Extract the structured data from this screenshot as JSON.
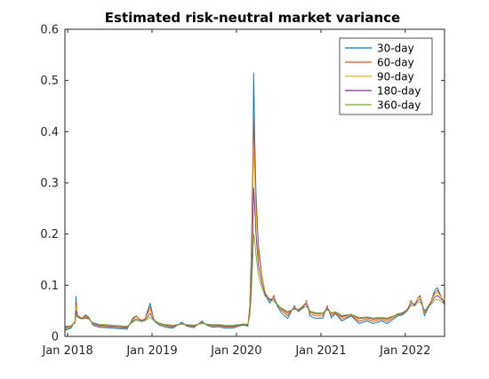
{
  "chart_data": {
    "type": "line",
    "title": "Estimated risk-neutral market variance",
    "xlabel": "",
    "ylabel": "",
    "xlim": [
      "2017-12-20",
      "2022-06-20"
    ],
    "ylim": [
      0,
      0.6
    ],
    "x_ticks": [
      "2018-01-01",
      "2019-01-01",
      "2020-01-01",
      "2021-01-01",
      "2022-01-01"
    ],
    "x_tick_labels": [
      "Jan 2018",
      "Jan 2019",
      "Jan 2020",
      "Jan 2021",
      "Jan 2022"
    ],
    "y_ticks": [
      0,
      0.1,
      0.2,
      0.3,
      0.4,
      0.5,
      0.6
    ],
    "y_tick_labels": [
      "0",
      "0.1",
      "0.2",
      "0.3",
      "0.4",
      "0.5",
      "0.6"
    ],
    "grid": false,
    "legend_position": "top-right",
    "x": [
      "2017-12-20",
      "2018-01-15",
      "2018-02-02",
      "2018-02-06",
      "2018-02-12",
      "2018-03-01",
      "2018-03-20",
      "2018-04-02",
      "2018-04-20",
      "2018-05-15",
      "2018-06-15",
      "2018-07-15",
      "2018-08-15",
      "2018-09-15",
      "2018-10-10",
      "2018-10-25",
      "2018-11-15",
      "2018-12-01",
      "2018-12-24",
      "2019-01-10",
      "2019-02-01",
      "2019-03-01",
      "2019-04-01",
      "2019-05-10",
      "2019-06-01",
      "2019-07-01",
      "2019-08-05",
      "2019-08-25",
      "2019-09-20",
      "2019-10-15",
      "2019-11-15",
      "2019-12-15",
      "2020-01-10",
      "2020-01-31",
      "2020-02-20",
      "2020-02-28",
      "2020-03-05",
      "2020-03-12",
      "2020-03-16",
      "2020-03-20",
      "2020-03-26",
      "2020-04-05",
      "2020-04-20",
      "2020-05-05",
      "2020-05-25",
      "2020-06-11",
      "2020-06-25",
      "2020-07-15",
      "2020-08-10",
      "2020-09-08",
      "2020-09-25",
      "2020-10-15",
      "2020-10-30",
      "2020-11-15",
      "2020-12-10",
      "2021-01-10",
      "2021-01-28",
      "2021-02-15",
      "2021-03-05",
      "2021-04-01",
      "2021-05-12",
      "2021-06-15",
      "2021-07-19",
      "2021-08-15",
      "2021-09-20",
      "2021-10-15",
      "2021-11-30",
      "2021-12-20",
      "2022-01-10",
      "2022-01-25",
      "2022-02-10",
      "2022-02-24",
      "2022-03-07",
      "2022-03-25",
      "2022-04-15",
      "2022-05-09",
      "2022-05-20",
      "2022-06-13",
      "2022-06-20"
    ],
    "series": [
      {
        "name": "30-day",
        "color": "#0072BD",
        "values": [
          0.012,
          0.016,
          0.03,
          0.078,
          0.04,
          0.035,
          0.042,
          0.038,
          0.022,
          0.018,
          0.017,
          0.016,
          0.015,
          0.014,
          0.036,
          0.04,
          0.03,
          0.034,
          0.065,
          0.03,
          0.022,
          0.018,
          0.016,
          0.028,
          0.02,
          0.017,
          0.03,
          0.022,
          0.018,
          0.019,
          0.016,
          0.016,
          0.02,
          0.022,
          0.02,
          0.06,
          0.15,
          0.33,
          0.515,
          0.4,
          0.28,
          0.18,
          0.12,
          0.08,
          0.065,
          0.08,
          0.06,
          0.045,
          0.035,
          0.06,
          0.048,
          0.055,
          0.07,
          0.04,
          0.035,
          0.036,
          0.06,
          0.036,
          0.045,
          0.03,
          0.04,
          0.025,
          0.03,
          0.025,
          0.03,
          0.025,
          0.04,
          0.042,
          0.05,
          0.07,
          0.06,
          0.075,
          0.08,
          0.04,
          0.06,
          0.09,
          0.095,
          0.07,
          0.062
        ]
      },
      {
        "name": "60-day",
        "color": "#D95319",
        "values": [
          0.014,
          0.018,
          0.03,
          0.068,
          0.042,
          0.036,
          0.04,
          0.037,
          0.024,
          0.02,
          0.019,
          0.018,
          0.017,
          0.016,
          0.034,
          0.04,
          0.032,
          0.034,
          0.058,
          0.032,
          0.024,
          0.02,
          0.018,
          0.026,
          0.021,
          0.019,
          0.028,
          0.023,
          0.02,
          0.021,
          0.018,
          0.018,
          0.021,
          0.023,
          0.022,
          0.055,
          0.13,
          0.29,
          0.43,
          0.36,
          0.26,
          0.17,
          0.12,
          0.085,
          0.07,
          0.078,
          0.062,
          0.05,
          0.04,
          0.058,
          0.05,
          0.058,
          0.068,
          0.044,
          0.04,
          0.04,
          0.058,
          0.04,
          0.046,
          0.034,
          0.041,
          0.029,
          0.033,
          0.029,
          0.033,
          0.029,
          0.042,
          0.044,
          0.052,
          0.068,
          0.062,
          0.075,
          0.078,
          0.045,
          0.062,
          0.085,
          0.09,
          0.072,
          0.064
        ]
      },
      {
        "name": "90-day",
        "color": "#EDB120",
        "values": [
          0.016,
          0.019,
          0.03,
          0.06,
          0.042,
          0.036,
          0.039,
          0.036,
          0.025,
          0.021,
          0.02,
          0.019,
          0.018,
          0.017,
          0.032,
          0.038,
          0.032,
          0.034,
          0.052,
          0.032,
          0.025,
          0.021,
          0.019,
          0.025,
          0.022,
          0.02,
          0.027,
          0.024,
          0.021,
          0.022,
          0.019,
          0.019,
          0.022,
          0.024,
          0.023,
          0.05,
          0.115,
          0.25,
          0.37,
          0.32,
          0.24,
          0.16,
          0.115,
          0.085,
          0.072,
          0.076,
          0.063,
          0.052,
          0.043,
          0.057,
          0.052,
          0.06,
          0.068,
          0.047,
          0.043,
          0.043,
          0.057,
          0.043,
          0.048,
          0.037,
          0.043,
          0.032,
          0.035,
          0.032,
          0.035,
          0.032,
          0.044,
          0.046,
          0.053,
          0.067,
          0.063,
          0.074,
          0.077,
          0.048,
          0.063,
          0.082,
          0.086,
          0.073,
          0.065
        ]
      },
      {
        "name": "180-day",
        "color": "#7E2F8E",
        "values": [
          0.018,
          0.02,
          0.028,
          0.05,
          0.04,
          0.035,
          0.037,
          0.035,
          0.026,
          0.022,
          0.021,
          0.02,
          0.019,
          0.018,
          0.03,
          0.034,
          0.031,
          0.032,
          0.045,
          0.031,
          0.026,
          0.022,
          0.02,
          0.024,
          0.022,
          0.021,
          0.026,
          0.024,
          0.022,
          0.022,
          0.02,
          0.02,
          0.022,
          0.024,
          0.023,
          0.045,
          0.095,
          0.2,
          0.29,
          0.26,
          0.2,
          0.14,
          0.105,
          0.082,
          0.072,
          0.073,
          0.063,
          0.054,
          0.046,
          0.055,
          0.052,
          0.058,
          0.064,
          0.048,
          0.045,
          0.045,
          0.055,
          0.045,
          0.048,
          0.039,
          0.043,
          0.035,
          0.037,
          0.034,
          0.036,
          0.034,
          0.044,
          0.046,
          0.052,
          0.064,
          0.062,
          0.07,
          0.073,
          0.05,
          0.061,
          0.077,
          0.08,
          0.07,
          0.064
        ]
      },
      {
        "name": "360-day",
        "color": "#77AC30",
        "values": [
          0.02,
          0.021,
          0.026,
          0.042,
          0.037,
          0.034,
          0.035,
          0.034,
          0.027,
          0.024,
          0.023,
          0.022,
          0.021,
          0.02,
          0.028,
          0.031,
          0.029,
          0.03,
          0.038,
          0.03,
          0.026,
          0.023,
          0.022,
          0.024,
          0.023,
          0.022,
          0.025,
          0.024,
          0.023,
          0.023,
          0.022,
          0.022,
          0.023,
          0.024,
          0.024,
          0.04,
          0.075,
          0.15,
          0.2,
          0.19,
          0.16,
          0.12,
          0.095,
          0.078,
          0.07,
          0.069,
          0.062,
          0.055,
          0.049,
          0.053,
          0.051,
          0.055,
          0.059,
          0.049,
          0.046,
          0.046,
          0.052,
          0.046,
          0.048,
          0.041,
          0.043,
          0.037,
          0.038,
          0.036,
          0.037,
          0.036,
          0.043,
          0.045,
          0.05,
          0.06,
          0.059,
          0.066,
          0.068,
          0.051,
          0.059,
          0.071,
          0.073,
          0.066,
          0.062
        ]
      }
    ]
  }
}
